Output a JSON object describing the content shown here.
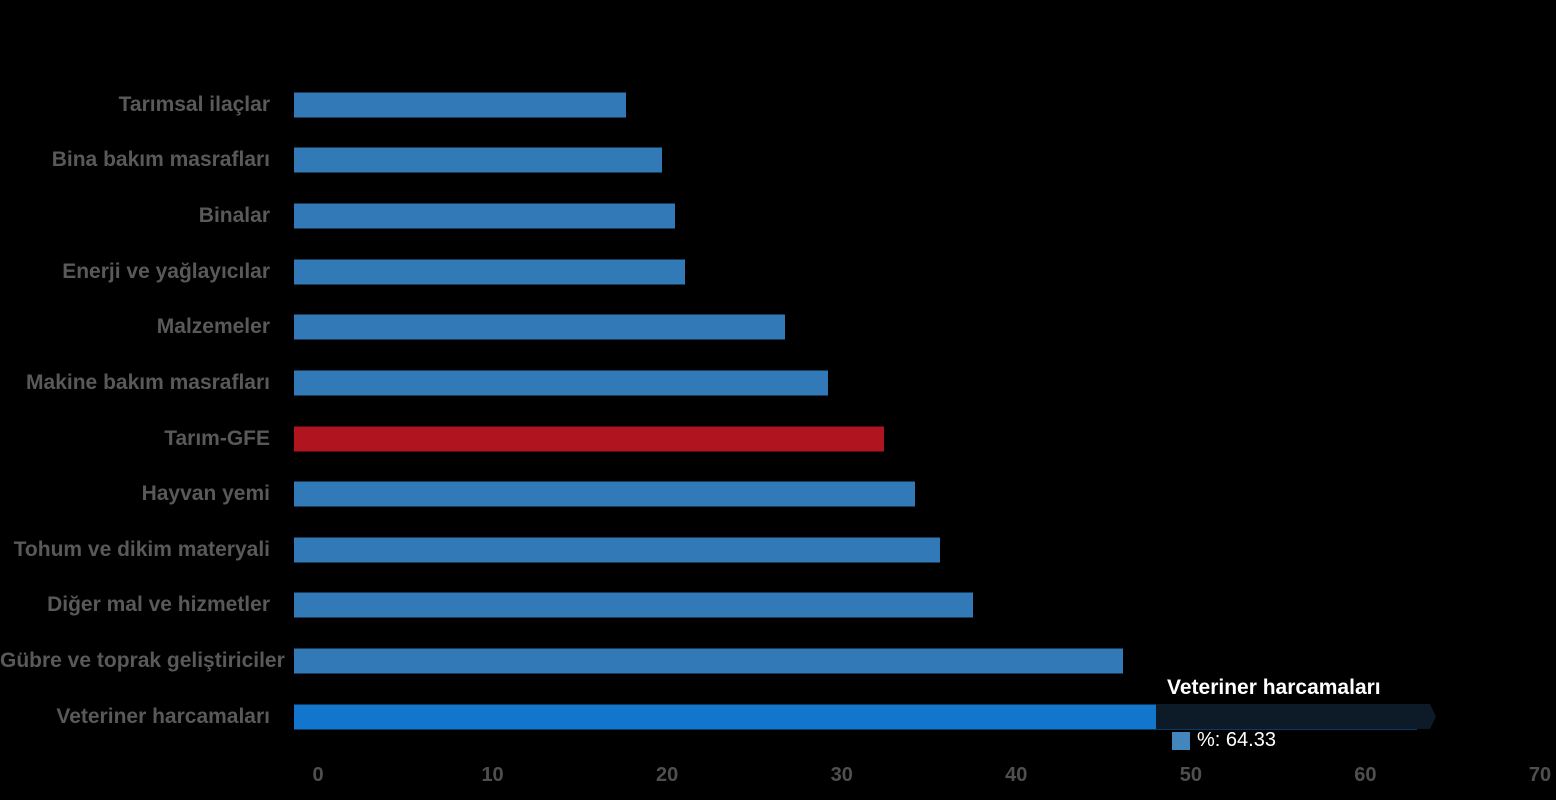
{
  "chart_data": {
    "type": "bar",
    "orientation": "horizontal",
    "title": "",
    "xlabel": "",
    "ylabel": "",
    "categories": [
      "Tarımsal ilaçlar",
      "Bina bakım masrafları",
      "Binalar",
      "Enerji  ve yağlayıcılar",
      "Malzemeler",
      "Makine bakım masrafları",
      "Tarım-GFE",
      "Hayvan yemi",
      "Tohum ve dikim materyali",
      "Diğer mal ve hizmetler",
      "Gübre ve toprak geliştiriciler",
      "Veteriner harcamaları"
    ],
    "values": [
      19.0,
      21.1,
      21.8,
      22.4,
      28.1,
      30.6,
      33.8,
      35.6,
      37.0,
      38.9,
      47.5,
      64.33
    ],
    "point_styles": [
      "default",
      "default",
      "default",
      "default",
      "default",
      "default",
      "special",
      "default",
      "default",
      "default",
      "default",
      "highlight"
    ],
    "xlim": [
      0,
      70
    ],
    "x_ticks": [
      "0",
      "10",
      "20",
      "30",
      "40",
      "50",
      "60",
      "70"
    ],
    "x_tick_values": [
      0,
      10,
      20,
      30,
      40,
      50,
      60,
      70
    ],
    "grid": false,
    "legend_position": "none"
  },
  "tooltip": {
    "title": "Veteriner harcamaları",
    "value_text": "%: 64.33"
  },
  "colors": {
    "background": "#000000",
    "bar_default": "#3179b7",
    "bar_highlight": "#1376cd",
    "bar_special": "#b0141f",
    "category_label": "#595959",
    "axis_label": "#4f4f4f",
    "tooltip_bg": "#0d1b28",
    "tooltip_text": "#ffffff",
    "tooltip_marker": "#4286bd"
  }
}
